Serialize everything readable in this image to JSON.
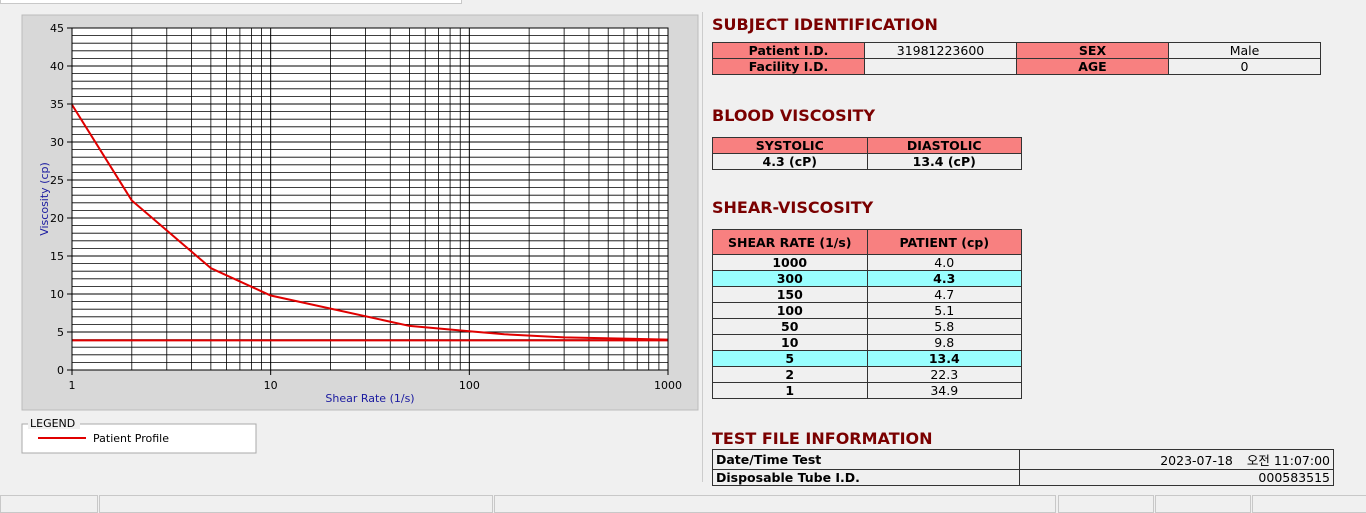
{
  "chart_data": {
    "type": "line",
    "x_label": "Shear Rate (1/s)",
    "y_label": "Viscosity (cp)",
    "xlim": [
      1,
      1000
    ],
    "ylim": [
      0,
      45
    ],
    "log_x": true,
    "xticks": [
      1,
      10,
      100,
      1000
    ],
    "yticks": [
      0,
      5,
      10,
      15,
      20,
      25,
      30,
      35,
      40,
      45
    ],
    "grid": true,
    "minor_grid": true,
    "series": [
      {
        "name": "Patient Profile",
        "color": "#e00000",
        "x": [
          1,
          2,
          5,
          10,
          50,
          100,
          150,
          300,
          1000
        ],
        "values": [
          34.9,
          22.3,
          13.4,
          9.8,
          5.8,
          5.1,
          4.7,
          4.3,
          4.0
        ]
      },
      {
        "color": "#e00000",
        "x": [
          1,
          1000
        ],
        "values": [
          3.9,
          3.9
        ]
      }
    ],
    "legend_title": "LEGEND"
  },
  "subject": {
    "title": "SUBJECT IDENTIFICATION",
    "rows": [
      [
        "Patient I.D.",
        "31981223600",
        "SEX",
        "Male"
      ],
      [
        "Facility I.D.",
        null,
        "AGE",
        "0"
      ]
    ]
  },
  "blood_viscosity": {
    "title": "BLOOD VISCOSITY",
    "headers": [
      "SYSTOLIC",
      "DIASTOLIC"
    ],
    "values": [
      "4.3 (cP)",
      "13.4 (cP)"
    ]
  },
  "shear_viscosity": {
    "title": "SHEAR-VISCOSITY",
    "headers": [
      "SHEAR RATE (1/s)",
      "PATIENT (cp)"
    ],
    "rows": [
      {
        "cells": [
          "1000",
          "4.0"
        ],
        "highlight": false
      },
      {
        "cells": [
          "300",
          "4.3"
        ],
        "highlight": true
      },
      {
        "cells": [
          "150",
          "4.7"
        ],
        "highlight": false
      },
      {
        "cells": [
          "100",
          "5.1"
        ],
        "highlight": false
      },
      {
        "cells": [
          "50",
          "5.8"
        ],
        "highlight": false
      },
      {
        "cells": [
          "10",
          "9.8"
        ],
        "highlight": false
      },
      {
        "cells": [
          "5",
          "13.4"
        ],
        "highlight": true
      },
      {
        "cells": [
          "2",
          "22.3"
        ],
        "highlight": false
      },
      {
        "cells": [
          "1",
          "34.9"
        ],
        "highlight": false
      }
    ]
  },
  "test_file": {
    "title": "TEST FILE INFORMATION",
    "rows": [
      {
        "label": "Date/Time Test",
        "value": [
          "2023-07-18",
          "오전 11:07:00"
        ]
      },
      {
        "label": "Disposable Tube I.D.",
        "value": [
          "000583515"
        ]
      }
    ]
  }
}
